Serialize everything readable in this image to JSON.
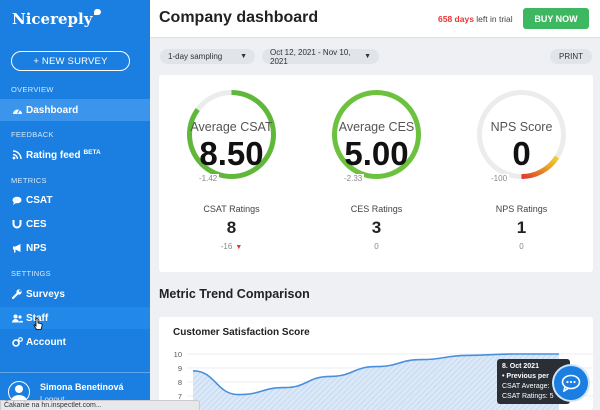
{
  "sidebar": {
    "logo": "Nicereply",
    "new_survey": "+ NEW SURVEY",
    "sections": {
      "overview": "OVERVIEW",
      "feedback": "FEEDBACK",
      "metrics": "METRICS",
      "settings": "SETTINGS"
    },
    "items": {
      "dashboard": "Dashboard",
      "rating_feed": "Rating feed",
      "rating_feed_badge": "BETA",
      "csat": "CSAT",
      "ces": "CES",
      "nps": "NPS",
      "surveys": "Surveys",
      "staff": "Staff",
      "account": "Account"
    },
    "user": {
      "name": "Simona Benetinová",
      "logout": "Logout"
    }
  },
  "header": {
    "title": "Company dashboard",
    "trial_days": "658 days",
    "trial_suffix": " left in trial",
    "buy_now": "BUY NOW"
  },
  "filters": {
    "sampling": "1-day sampling",
    "date_range": "Oct 12, 2021 - Nov 10, 2021",
    "print": "PRINT"
  },
  "metrics": [
    {
      "title": "Average CSAT",
      "value": "8.50",
      "min_label": "-1.42",
      "ratings_label": "CSAT Ratings",
      "ratings_value": "8",
      "delta": "-16",
      "gauge_fraction": 0.85,
      "gauge_color": "#5fb83a"
    },
    {
      "title": "Average CES",
      "value": "5.00",
      "min_label": "-2.33",
      "ratings_label": "CES Ratings",
      "ratings_value": "3",
      "delta": "0",
      "gauge_fraction": 1.0,
      "gauge_color": "#6cc13e"
    },
    {
      "title": "NPS Score",
      "value": "0",
      "min_label": "-100",
      "ratings_label": "NPS Ratings",
      "ratings_value": "1",
      "delta": "0",
      "gauge_fraction": 0.5,
      "gauge_color": "#e0a030"
    }
  ],
  "trend": {
    "section_title": "Metric Trend Comparison",
    "chart_title": "Customer Satisfaction Score",
    "y_ticks": [
      "10",
      "9",
      "8",
      "7"
    ]
  },
  "chart_data": {
    "type": "area",
    "title": "Customer Satisfaction Score",
    "ylim": [
      6.5,
      10
    ],
    "y_ticks": [
      10,
      9,
      8,
      7
    ],
    "series": [
      {
        "values": [
          8.8,
          7.1,
          7.6,
          8.4,
          9.1,
          9.6,
          9.9,
          10,
          10
        ]
      }
    ]
  },
  "tooltip": {
    "date": "8. Oct 2021",
    "heading": "• Previous per",
    "line1": "CSAT Average: ",
    "line2": "CSAT Ratings: 5"
  },
  "status_bar": "Čakanie na hn.inspectlet.com..."
}
